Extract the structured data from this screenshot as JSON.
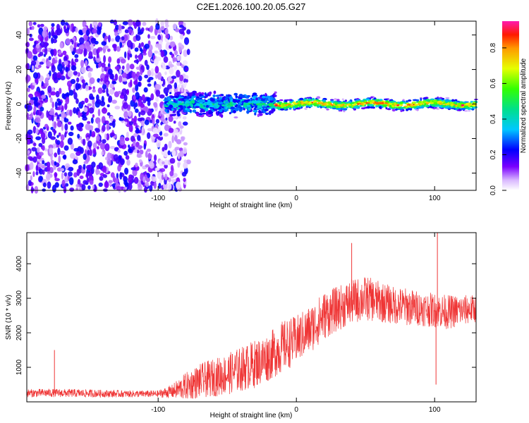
{
  "title": "C2E1.2026.100.20.05.G27",
  "chart_data": [
    {
      "type": "heatmap",
      "xlabel": "Height of straight line (km)",
      "ylabel": "Frequency (Hz)",
      "xlim": [
        -195,
        130
      ],
      "ylim": [
        -50,
        48
      ],
      "xticks": [
        -100,
        0,
        100
      ],
      "xtick_labels": [
        "-100",
        "0",
        "100"
      ],
      "yticks": [
        -40,
        -20,
        0,
        20,
        40
      ],
      "ytick_labels": [
        "-40",
        "-20",
        "0",
        "20",
        "40"
      ],
      "colorbar": {
        "label": "Normalized spectral amplitude",
        "range": [
          0.0,
          0.95
        ],
        "ticks": [
          0.0,
          0.2,
          0.4,
          0.6,
          0.8
        ],
        "tick_labels": [
          "0.0",
          "0.2",
          "0.4",
          "0.6",
          "0.8"
        ]
      },
      "regions": [
        {
          "name": "noise",
          "x_range": [
            -195,
            -90
          ],
          "freq_range": [
            -50,
            48
          ],
          "amplitude_approx": 0.15
        },
        {
          "name": "signal-onset",
          "x_range": [
            -95,
            -15
          ],
          "freq_center": 0,
          "freq_halfwidth": 6,
          "amplitude_approx": 0.3
        },
        {
          "name": "signal-strong",
          "x_range": [
            -15,
            130
          ],
          "freq_center": 0,
          "freq_halfwidth": 3,
          "amplitude_approx": 0.9
        }
      ]
    },
    {
      "type": "line",
      "xlabel": "Height of straight line (km)",
      "ylabel": "SNR (10 * v/v)",
      "xlim": [
        -195,
        130
      ],
      "ylim": [
        0,
        4900
      ],
      "xticks": [
        -100,
        0,
        100
      ],
      "xtick_labels": [
        "-100",
        "0",
        "100"
      ],
      "yticks": [
        1000,
        2000,
        3000,
        4000
      ],
      "ytick_labels": [
        "1000",
        "2000",
        "3000",
        "4000"
      ],
      "color": "#ef3535",
      "series": [
        {
          "name": "SNR",
          "x": [
            -195,
            -180,
            -160,
            -140,
            -120,
            -100,
            -90,
            -80,
            -70,
            -60,
            -50,
            -40,
            -30,
            -20,
            -10,
            0,
            10,
            20,
            30,
            40,
            50,
            60,
            70,
            80,
            90,
            100,
            110,
            120,
            130
          ],
          "base": [
            250,
            260,
            250,
            240,
            230,
            230,
            300,
            450,
            600,
            700,
            800,
            950,
            1100,
            1300,
            1600,
            1800,
            2100,
            2500,
            2700,
            2900,
            3000,
            2900,
            2800,
            2750,
            2700,
            2650,
            2600,
            2650,
            2700
          ],
          "spread": [
            120,
            120,
            120,
            110,
            100,
            100,
            200,
            400,
            500,
            550,
            600,
            650,
            700,
            700,
            750,
            700,
            700,
            700,
            650,
            650,
            650,
            600,
            550,
            550,
            500,
            500,
            500,
            450,
            400
          ]
        }
      ],
      "spikes": [
        {
          "x": -175,
          "y": 1500
        },
        {
          "x": 40,
          "y": 4600
        },
        {
          "x": 102,
          "y": 4900
        },
        {
          "x": 101,
          "y": 500
        }
      ]
    }
  ]
}
